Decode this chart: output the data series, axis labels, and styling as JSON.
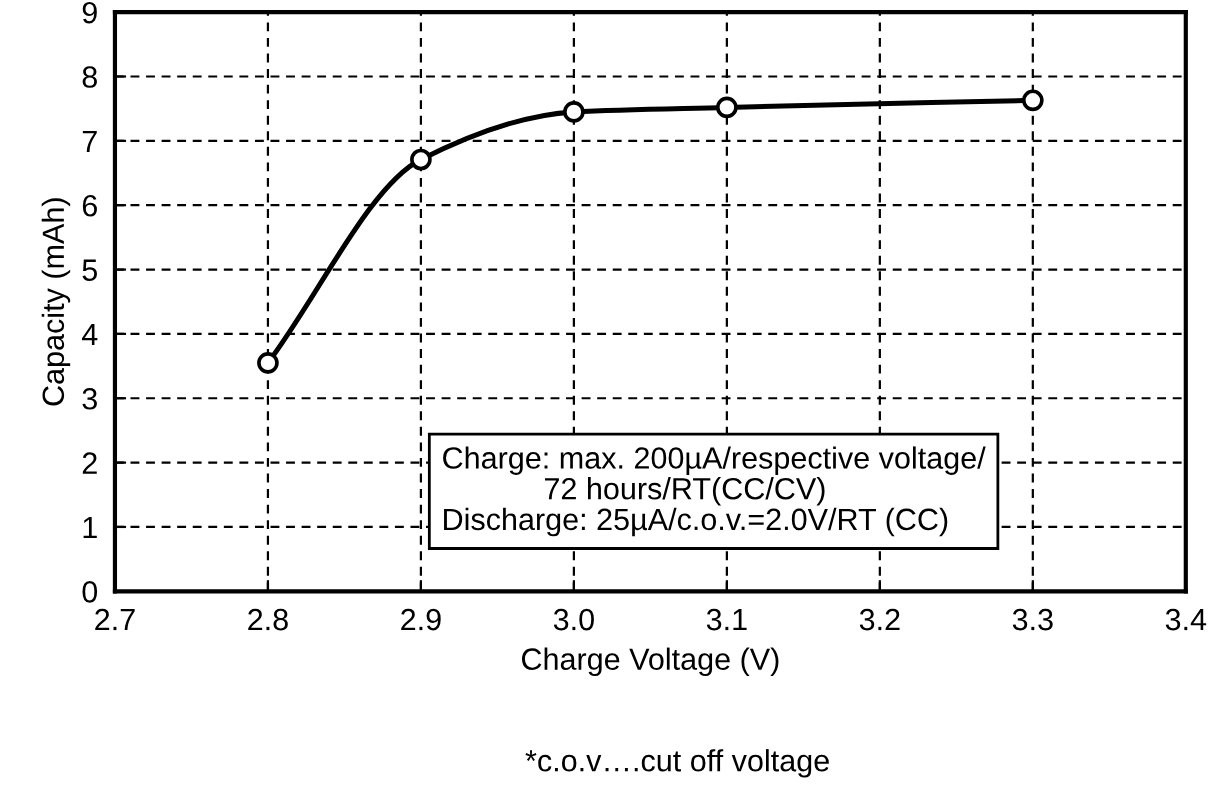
{
  "chart_data": {
    "type": "line",
    "xlabel": "Charge Voltage (V)",
    "ylabel": "Capacity (mAh)",
    "x": [
      2.8,
      2.9,
      3.0,
      3.1,
      3.3
    ],
    "series": [
      {
        "color": "#000000",
        "values": [
          3.55,
          6.71,
          7.45,
          7.52,
          7.63
        ]
      }
    ],
    "xlim": [
      2.7,
      3.4
    ],
    "xticks": [
      2.7,
      2.8,
      2.9,
      {
        "value": 3.0,
        "label": "3.0"
      },
      3.1,
      3.2,
      3.3,
      3.4
    ],
    "ylim": [
      0,
      9
    ],
    "yticks": [
      0,
      1,
      2,
      3,
      4,
      5,
      6,
      7,
      8,
      9
    ],
    "grid": true,
    "marker": "circle",
    "line_style": "solid",
    "legend": false,
    "annotations": [
      "Charge: max. 200µA/respective voltage/\n            72 hours/RT(CC/CV)\nDischarge: 25µA/c.o.v.=2.0V/RT (CC)",
      "*c.o.v….cut off voltage"
    ]
  }
}
